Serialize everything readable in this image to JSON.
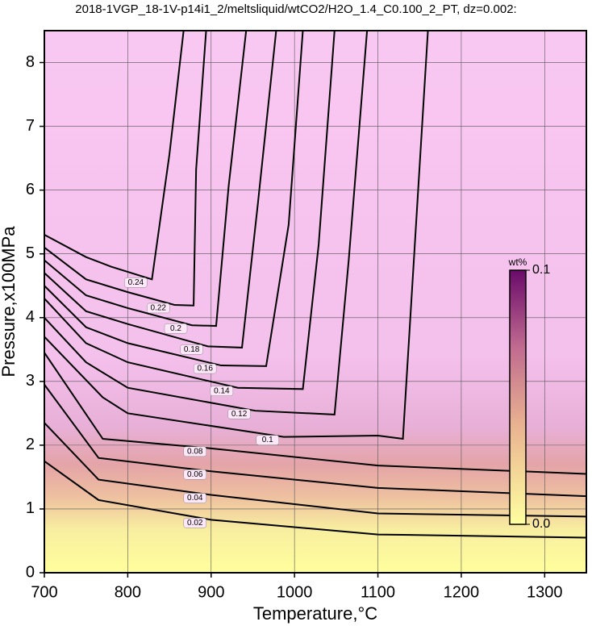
{
  "chart_data": {
    "type": "contour",
    "title": "2018-1VGP_18-1V-p14i1_2/meltsliquid/wtCO2/H2O_1.4_C0.100_2_PT, dz=0.002:",
    "x_label": "Temperature,°C",
    "y_label": "Pressure,x100MPa",
    "xlim": [
      700,
      1350
    ],
    "ylim": [
      0,
      8.5
    ],
    "xticks": [
      700,
      800,
      900,
      1000,
      1100,
      1200,
      1300
    ],
    "yticks": [
      0,
      1,
      2,
      3,
      4,
      5,
      6,
      7,
      8
    ],
    "grid": true,
    "line_color": "#000000",
    "contours": [
      {
        "level": 0.02,
        "x": [
          700,
          765,
          900,
          1100,
          1350
        ],
        "y": [
          1.75,
          1.14,
          0.83,
          0.6,
          0.55
        ]
      },
      {
        "level": 0.04,
        "x": [
          700,
          765,
          900,
          1100,
          1350
        ],
        "y": [
          2.35,
          1.46,
          1.22,
          0.93,
          0.88
        ]
      },
      {
        "level": 0.06,
        "x": [
          700,
          765,
          900,
          1100,
          1350
        ],
        "y": [
          2.95,
          1.8,
          1.59,
          1.33,
          1.2
        ]
      },
      {
        "level": 0.08,
        "x": [
          700,
          770,
          900,
          1100,
          1350
        ],
        "y": [
          3.45,
          2.1,
          1.95,
          1.68,
          1.55
        ]
      },
      {
        "level": 0.1,
        "x": [
          700,
          770,
          800,
          987,
          1100,
          1130,
          1160
        ],
        "y": [
          3.7,
          2.75,
          2.5,
          2.13,
          2.15,
          2.1,
          8.5
        ]
      },
      {
        "level": 0.12,
        "x": [
          700,
          750,
          800,
          953,
          1048,
          1065,
          1087
        ],
        "y": [
          4.0,
          3.3,
          2.9,
          2.54,
          2.48,
          4.9,
          8.5
        ]
      },
      {
        "level": 0.14,
        "x": [
          700,
          750,
          800,
          932,
          1010,
          1029,
          1048
        ],
        "y": [
          4.3,
          3.6,
          3.3,
          2.9,
          2.88,
          5.15,
          8.5
        ]
      },
      {
        "level": 0.16,
        "x": [
          700,
          750,
          800,
          912,
          966,
          993,
          1010
        ],
        "y": [
          4.5,
          3.85,
          3.6,
          3.25,
          3.24,
          5.46,
          8.5
        ]
      },
      {
        "level": 0.18,
        "x": [
          700,
          750,
          800,
          896,
          937,
          956,
          978
        ],
        "y": [
          4.7,
          4.1,
          3.9,
          3.55,
          3.53,
          5.78,
          8.5
        ]
      },
      {
        "level": 0.2,
        "x": [
          700,
          750,
          800,
          877,
          906,
          921,
          942
        ],
        "y": [
          4.9,
          4.35,
          4.15,
          3.88,
          3.87,
          6.06,
          8.5
        ]
      },
      {
        "level": 0.22,
        "x": [
          700,
          750,
          800,
          856,
          879,
          882,
          894
        ],
        "y": [
          5.1,
          4.6,
          4.4,
          4.2,
          4.19,
          6.32,
          8.5
        ]
      },
      {
        "level": 0.24,
        "x": [
          700,
          750,
          780,
          829,
          850,
          867
        ],
        "y": [
          5.3,
          4.95,
          4.8,
          4.6,
          6.56,
          8.5
        ]
      }
    ],
    "colorbar": {
      "title": "wt%",
      "range": [
        0,
        0.1
      ],
      "ticks": [
        {
          "value": 0,
          "label": "0.0"
        },
        0.1
      ]
    }
  }
}
